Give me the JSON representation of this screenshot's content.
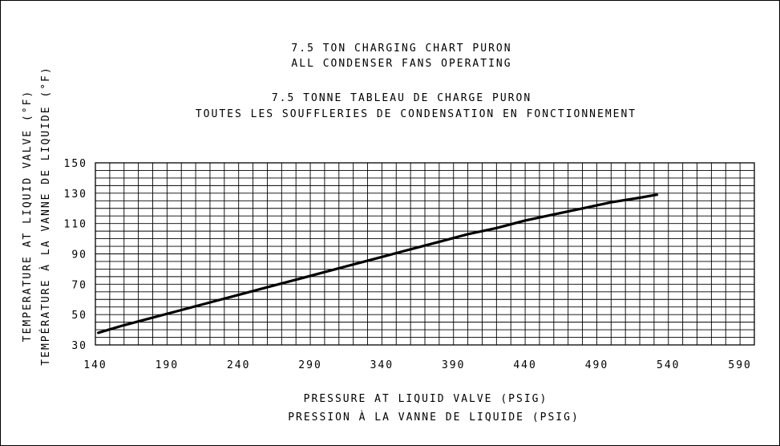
{
  "chart_data": {
    "type": "line",
    "title_lines": [
      "7.5 TON CHARGING CHART PURON",
      "ALL CONDENSER FANS OPERATING",
      "7.5 TONNE TABLEAU DE CHARGE PURON",
      "TOUTES LES SOUFFLERIES DE CONDENSATION EN FONCTIONNEMENT"
    ],
    "xlabel_lines": [
      "PRESSURE AT LIQUID VALVE (PSIG)",
      "PRESSION À LA VANNE DE LIQUIDE (PSIG)"
    ],
    "ylabel_lines": [
      "TEMPERATURE AT LIQUID VALVE (°F)",
      "TEMPÉRATURE À LA VANNE DE LIQUIDE (°F)"
    ],
    "xlim": [
      140,
      600
    ],
    "ylim": [
      30,
      150
    ],
    "x_ticks": [
      140,
      190,
      240,
      290,
      340,
      390,
      440,
      490,
      540,
      590
    ],
    "y_ticks": [
      30,
      50,
      70,
      90,
      110,
      130,
      150
    ],
    "x_minor_step": 10,
    "y_minor_step": 5,
    "grid": true,
    "colors": {
      "line": "#000000",
      "grid": "#000000"
    },
    "series": [
      {
        "x": [
          142,
          160,
          180,
          200,
          220,
          240,
          260,
          280,
          300,
          320,
          340,
          360,
          380,
          400,
          420,
          440,
          460,
          480,
          500,
          520,
          532
        ],
        "y": [
          38,
          43,
          48,
          53,
          58,
          63,
          68,
          73,
          78,
          83,
          88,
          93,
          98,
          103,
          107,
          112,
          116,
          120,
          124,
          127,
          129
        ]
      }
    ]
  }
}
